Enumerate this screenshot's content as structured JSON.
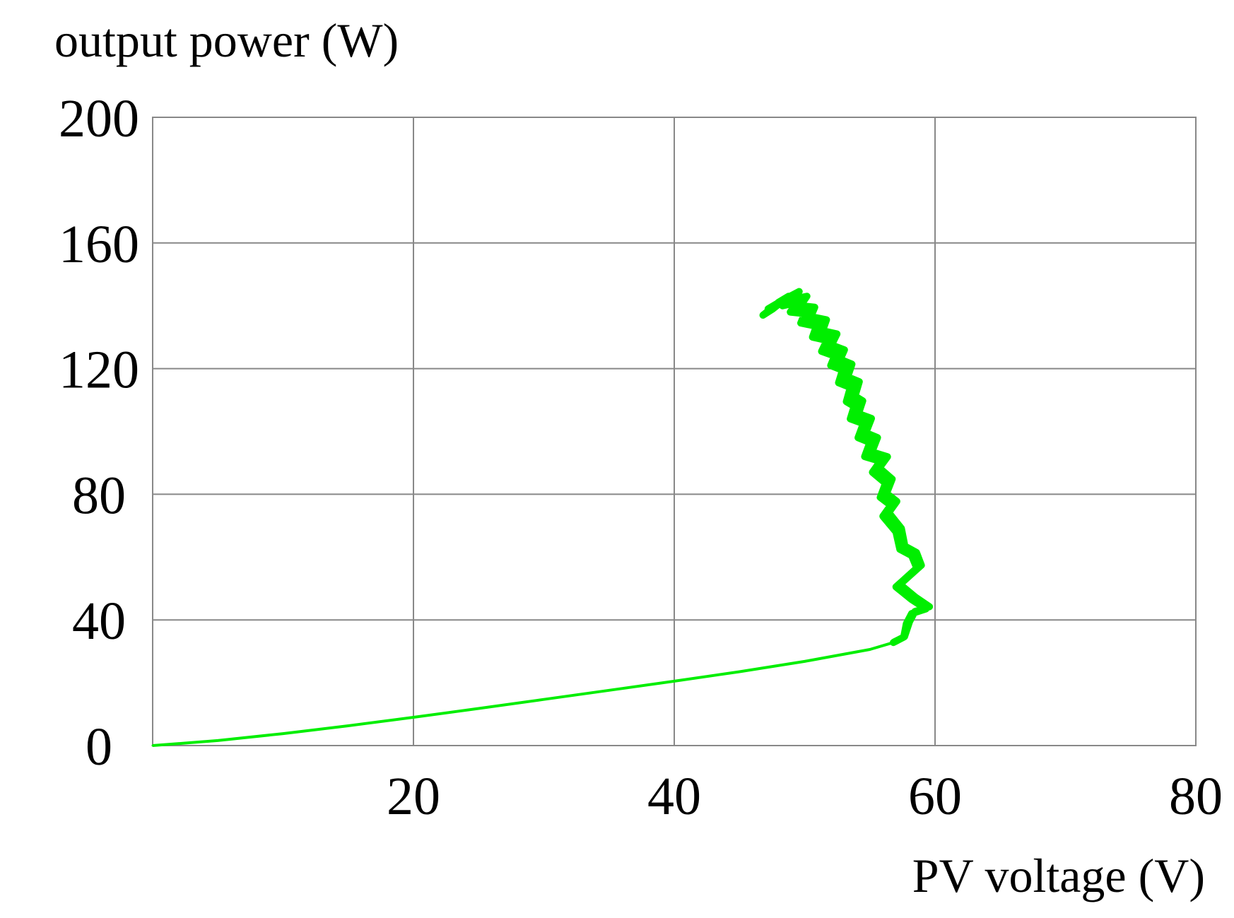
{
  "chart_data": {
    "type": "line",
    "title": "",
    "xlabel": "PV voltage (V)",
    "ylabel": "output power (W)",
    "xlim": [
      0,
      80
    ],
    "ylim": [
      0,
      200
    ],
    "x_ticks": [
      20,
      40,
      60,
      80
    ],
    "y_ticks": [
      0,
      40,
      80,
      120,
      160,
      200
    ],
    "x_tick_labels": [
      "20",
      "40",
      "60",
      "80"
    ],
    "y_tick_labels": [
      "0",
      "40",
      "80",
      "120",
      "160",
      "200"
    ],
    "grid": true,
    "legend": "none",
    "colors": {
      "series": "#00ee00",
      "grid": "#888888",
      "frame": "#888888",
      "background": "#ffffff"
    },
    "series": [
      {
        "x": [
          0,
          5,
          10,
          15,
          20,
          25,
          30,
          35,
          40,
          45,
          50,
          55,
          56.8,
          57.6,
          57.8,
          58.2,
          59.3,
          58.2,
          57.0,
          58.6,
          58.2,
          57.3,
          57.0,
          56.0,
          56.6,
          55.8,
          56.2,
          55.2,
          55.8,
          54.6,
          55.0,
          54.1,
          54.5,
          53.5,
          53.8,
          53.2,
          53.5,
          52.6,
          52.9,
          52.0,
          52.3,
          51.3,
          51.7,
          50.6,
          50.9,
          49.7,
          50.0,
          48.9,
          49.4,
          48.3,
          48.8,
          47.2,
          48.0,
          46.8
        ],
        "y": [
          0,
          1.6,
          3.8,
          6.3,
          9.0,
          11.8,
          14.7,
          17.6,
          20.5,
          23.5,
          26.8,
          30.6,
          32.8,
          34.5,
          38.8,
          42.0,
          43.5,
          46.5,
          50.5,
          56.5,
          60.5,
          62.5,
          68.0,
          73.0,
          76.5,
          79.0,
          83.5,
          87.0,
          90.5,
          92.0,
          96.5,
          98.0,
          102.5,
          104.0,
          108.0,
          109.5,
          114.0,
          115.5,
          119.5,
          121.0,
          124.0,
          125.5,
          129.0,
          130.0,
          133.5,
          134.5,
          137.5,
          138.0,
          141.0,
          140.0,
          142.5,
          139.0,
          141.0,
          137.0
        ]
      }
    ]
  }
}
